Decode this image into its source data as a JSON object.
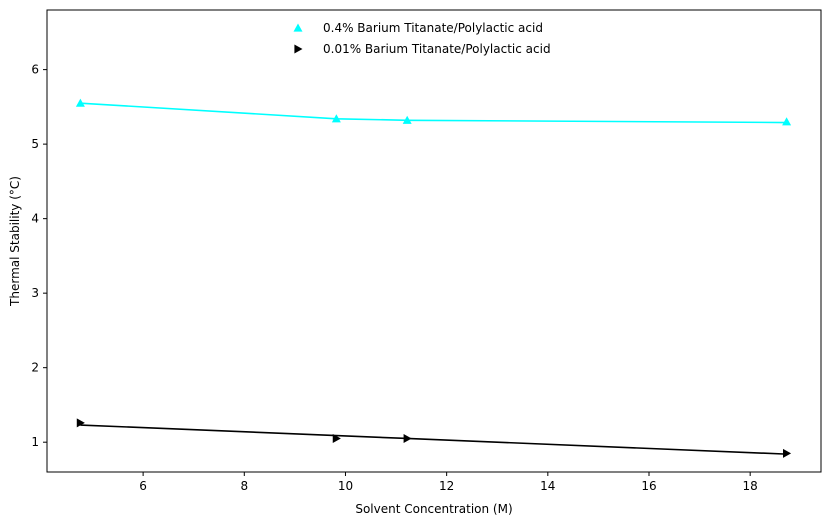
{
  "chart_data": {
    "type": "line",
    "title": "",
    "xlabel": "Solvent Concentration (M)",
    "ylabel": "Thermal Stability (°C)",
    "xlim": [
      4.1,
      19.4
    ],
    "ylim": [
      0.6,
      6.8
    ],
    "xticks": [
      6,
      8,
      10,
      12,
      14,
      16,
      18
    ],
    "yticks": [
      1,
      2,
      3,
      4,
      5,
      6
    ],
    "grid": false,
    "legend_position": "top-center",
    "series": [
      {
        "name": "0.4% Barium Titanate/Polylactic acid",
        "color": "#00ffff",
        "marker": "triangle-up",
        "points": [
          {
            "x": 4.76,
            "y": 5.55
          },
          {
            "x": 9.82,
            "y": 5.34
          },
          {
            "x": 11.22,
            "y": 5.32
          },
          {
            "x": 18.72,
            "y": 5.3
          }
        ],
        "trend": [
          {
            "x": 4.76,
            "y": 5.55
          },
          {
            "x": 9.82,
            "y": 5.34
          },
          {
            "x": 11.22,
            "y": 5.32
          },
          {
            "x": 18.72,
            "y": 5.29
          }
        ]
      },
      {
        "name": "0.01% Barium Titanate/Polylactic acid",
        "color": "#000000",
        "marker": "triangle-right",
        "points": [
          {
            "x": 4.76,
            "y": 1.26
          },
          {
            "x": 9.82,
            "y": 1.05
          },
          {
            "x": 11.22,
            "y": 1.05
          },
          {
            "x": 18.72,
            "y": 0.85
          }
        ],
        "trend": [
          {
            "x": 4.76,
            "y": 1.23
          },
          {
            "x": 11.22,
            "y": 1.05
          },
          {
            "x": 18.72,
            "y": 0.84
          }
        ]
      }
    ]
  }
}
